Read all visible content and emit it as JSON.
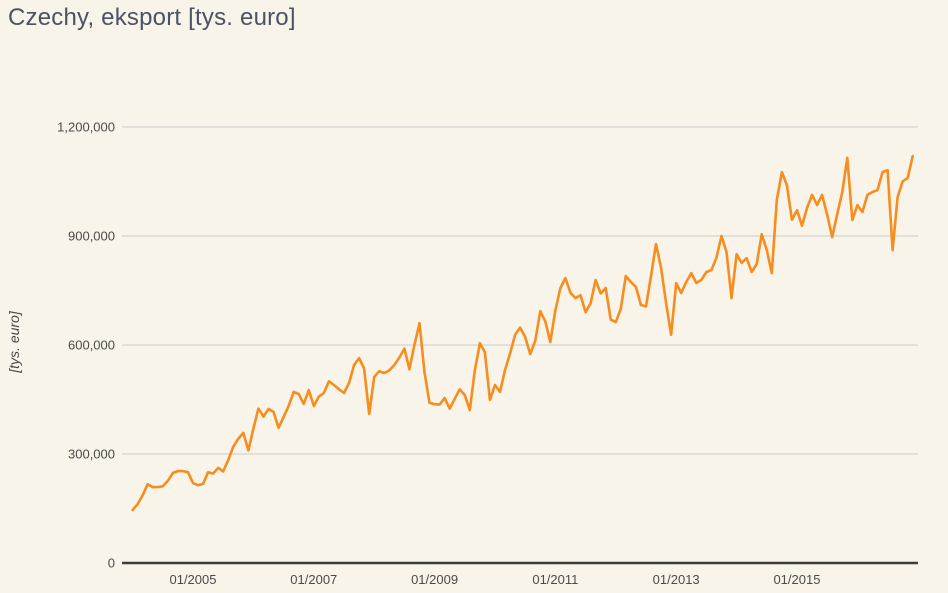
{
  "title": "Czechy, eksport [tys. euro]",
  "colors": {
    "background": "#f9f4ea",
    "line": "#f68d1e",
    "grid": "#cbcbcb",
    "axis": "#3b3b3b",
    "tick_text": "#4b4b4b",
    "title_text": "#4a5263"
  },
  "chart_data": {
    "type": "line",
    "title": "Czechy, eksport [tys. euro]",
    "xlabel": "",
    "ylabel": "[tys. euro]",
    "frequency": "monthly",
    "start_month": "01/2004",
    "end_month": "12/2016",
    "grid": true,
    "legend": false,
    "ylim": [
      0,
      1200000
    ],
    "y_ticks": [
      0,
      300000,
      600000,
      900000,
      1200000
    ],
    "y_tick_labels": [
      "0",
      "300,000",
      "600,000",
      "900,000",
      "1,200,000"
    ],
    "x_tick_labels": [
      "01/2005",
      "01/2007",
      "01/2009",
      "01/2011",
      "01/2013",
      "01/2015"
    ],
    "x_tick_month_indices": [
      12,
      36,
      60,
      84,
      108,
      132
    ],
    "series": [
      {
        "name": "Czechy, eksport",
        "values": [
          146000,
          162000,
          187000,
          217000,
          209000,
          209000,
          211000,
          226000,
          248000,
          253000,
          253000,
          250000,
          220000,
          214000,
          218000,
          250000,
          246000,
          262000,
          252000,
          283000,
          320000,
          342000,
          358000,
          310000,
          370000,
          425000,
          403000,
          424000,
          416000,
          372000,
          402000,
          432000,
          471000,
          465000,
          438000,
          476000,
          432000,
          458000,
          468000,
          500000,
          490000,
          478000,
          468000,
          495000,
          545000,
          564000,
          535000,
          410000,
          512000,
          528000,
          523000,
          530000,
          545000,
          565000,
          590000,
          533000,
          600000,
          660000,
          525000,
          441000,
          437000,
          436000,
          454000,
          425000,
          452000,
          478000,
          462000,
          421000,
          530000,
          605000,
          580000,
          449000,
          490000,
          471000,
          531000,
          577000,
          628000,
          648000,
          622000,
          575000,
          611000,
          693000,
          665000,
          608000,
          696000,
          757000,
          784000,
          743000,
          729000,
          737000,
          690000,
          715000,
          779000,
          742000,
          757000,
          670000,
          663000,
          700000,
          790000,
          773000,
          760000,
          710000,
          706000,
          790000,
          878000,
          812000,
          715000,
          628000,
          770000,
          743000,
          773000,
          798000,
          771000,
          779000,
          801000,
          806000,
          840000,
          900000,
          856000,
          729000,
          850000,
          826000,
          839000,
          801000,
          823000,
          905000,
          861000,
          798000,
          999000,
          1076000,
          1040000,
          945000,
          971000,
          928000,
          977000,
          1013000,
          985000,
          1013000,
          958000,
          897000,
          960000,
          1021000,
          1115000,
          944000,
          985000,
          966000,
          1013000,
          1021000,
          1026000,
          1076000,
          1081000,
          861000,
          1007000,
          1050000,
          1060000,
          1120000
        ]
      }
    ]
  }
}
